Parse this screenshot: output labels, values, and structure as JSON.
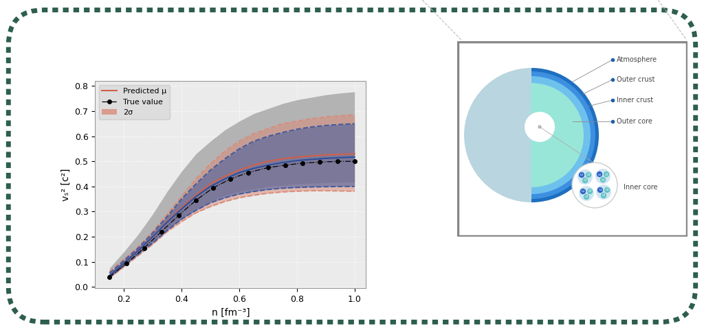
{
  "chart_data": {
    "type": "line",
    "x_label": "n [fm⁻³]",
    "y_label": "vₛ² [c²]",
    "xlim": [
      0.1,
      1.04
    ],
    "ylim": [
      -0.005,
      0.82
    ],
    "xticks": [
      0.2,
      0.4,
      0.6,
      0.8,
      1.0
    ],
    "yticks": [
      0.0,
      0.1,
      0.2,
      0.3,
      0.4,
      0.5,
      0.6,
      0.7,
      0.8
    ],
    "grid": true,
    "legend": "upper left",
    "series": [
      {
        "type": "band",
        "color": "#b3b3b3",
        "x": [
          0.15,
          0.2,
          0.25,
          0.3,
          0.35,
          0.4,
          0.45,
          0.5,
          0.55,
          0.6,
          0.65,
          0.7,
          0.75,
          0.8,
          0.85,
          0.9,
          0.95,
          1.0
        ],
        "upper": [
          0.075,
          0.14,
          0.21,
          0.29,
          0.38,
          0.46,
          0.53,
          0.58,
          0.625,
          0.66,
          0.69,
          0.71,
          0.73,
          0.745,
          0.755,
          0.765,
          0.772,
          0.777
        ],
        "lower": [
          0.035,
          0.08,
          0.13,
          0.18,
          0.23,
          0.27,
          0.31,
          0.34,
          0.365,
          0.38,
          0.39,
          0.4,
          0.405,
          0.41,
          0.413,
          0.415,
          0.417,
          0.418
        ]
      },
      {
        "type": "band",
        "name": "2σ",
        "color": "#d98c7a",
        "line_style": "dashed",
        "x": [
          0.15,
          0.2,
          0.25,
          0.3,
          0.35,
          0.4,
          0.45,
          0.5,
          0.55,
          0.6,
          0.65,
          0.7,
          0.75,
          0.8,
          0.85,
          0.9,
          0.95,
          1.0
        ],
        "upper": [
          0.06,
          0.11,
          0.16,
          0.22,
          0.29,
          0.36,
          0.43,
          0.49,
          0.54,
          0.58,
          0.61,
          0.63,
          0.65,
          0.66,
          0.67,
          0.677,
          0.682,
          0.685
        ],
        "lower": [
          0.035,
          0.08,
          0.125,
          0.17,
          0.22,
          0.26,
          0.295,
          0.32,
          0.34,
          0.355,
          0.365,
          0.373,
          0.378,
          0.381,
          0.383,
          0.383,
          0.382,
          0.381
        ]
      },
      {
        "type": "band",
        "color": "#3f5a9e",
        "line_style": "dashed",
        "x": [
          0.15,
          0.2,
          0.25,
          0.3,
          0.35,
          0.4,
          0.45,
          0.5,
          0.55,
          0.6,
          0.65,
          0.7,
          0.75,
          0.8,
          0.85,
          0.9,
          0.95,
          1.0
        ],
        "upper": [
          0.055,
          0.105,
          0.155,
          0.215,
          0.28,
          0.35,
          0.41,
          0.465,
          0.51,
          0.55,
          0.58,
          0.6,
          0.615,
          0.628,
          0.637,
          0.643,
          0.647,
          0.65
        ],
        "lower": [
          0.038,
          0.085,
          0.13,
          0.175,
          0.225,
          0.27,
          0.305,
          0.335,
          0.355,
          0.37,
          0.38,
          0.388,
          0.393,
          0.396,
          0.398,
          0.399,
          0.4,
          0.4
        ]
      },
      {
        "type": "line",
        "name": "Predicted μ",
        "color": "#d0604a",
        "line_style": "solid",
        "x": [
          0.15,
          0.2,
          0.25,
          0.3,
          0.35,
          0.4,
          0.45,
          0.5,
          0.55,
          0.6,
          0.65,
          0.7,
          0.75,
          0.8,
          0.85,
          0.9,
          0.95,
          1.0
        ],
        "values": [
          0.045,
          0.095,
          0.145,
          0.2,
          0.26,
          0.315,
          0.365,
          0.41,
          0.44,
          0.465,
          0.485,
          0.5,
          0.51,
          0.517,
          0.522,
          0.526,
          0.528,
          0.53
        ]
      },
      {
        "type": "line",
        "color": "#2f4f9a",
        "line_style": "solid",
        "x": [
          0.15,
          0.2,
          0.25,
          0.3,
          0.35,
          0.4,
          0.45,
          0.5,
          0.55,
          0.6,
          0.65,
          0.7,
          0.75,
          0.8,
          0.85,
          0.9,
          0.95,
          1.0
        ],
        "values": [
          0.045,
          0.095,
          0.145,
          0.2,
          0.258,
          0.31,
          0.36,
          0.4,
          0.43,
          0.455,
          0.472,
          0.485,
          0.495,
          0.503,
          0.508,
          0.512,
          0.515,
          0.517
        ]
      },
      {
        "type": "line",
        "name": "True value",
        "color": "#000000",
        "line_style": "dashdot",
        "marker": "circle",
        "x": [
          0.15,
          0.21,
          0.27,
          0.33,
          0.39,
          0.45,
          0.51,
          0.57,
          0.63,
          0.7,
          0.76,
          0.82,
          0.88,
          0.94,
          1.0
        ],
        "values": [
          0.04,
          0.095,
          0.155,
          0.22,
          0.285,
          0.345,
          0.395,
          0.43,
          0.455,
          0.475,
          0.485,
          0.493,
          0.497,
          0.5,
          0.5
        ]
      }
    ]
  },
  "diagram": {
    "labels": [
      "Atmosphere",
      "Outer crust",
      "Inner crust",
      "Outer core",
      "Inner core"
    ],
    "quarks": [
      [
        "u",
        "d",
        "d"
      ],
      [
        "u",
        "d",
        "d"
      ],
      [
        "u",
        "d",
        "d"
      ],
      [
        "u",
        "d",
        "d"
      ]
    ]
  }
}
